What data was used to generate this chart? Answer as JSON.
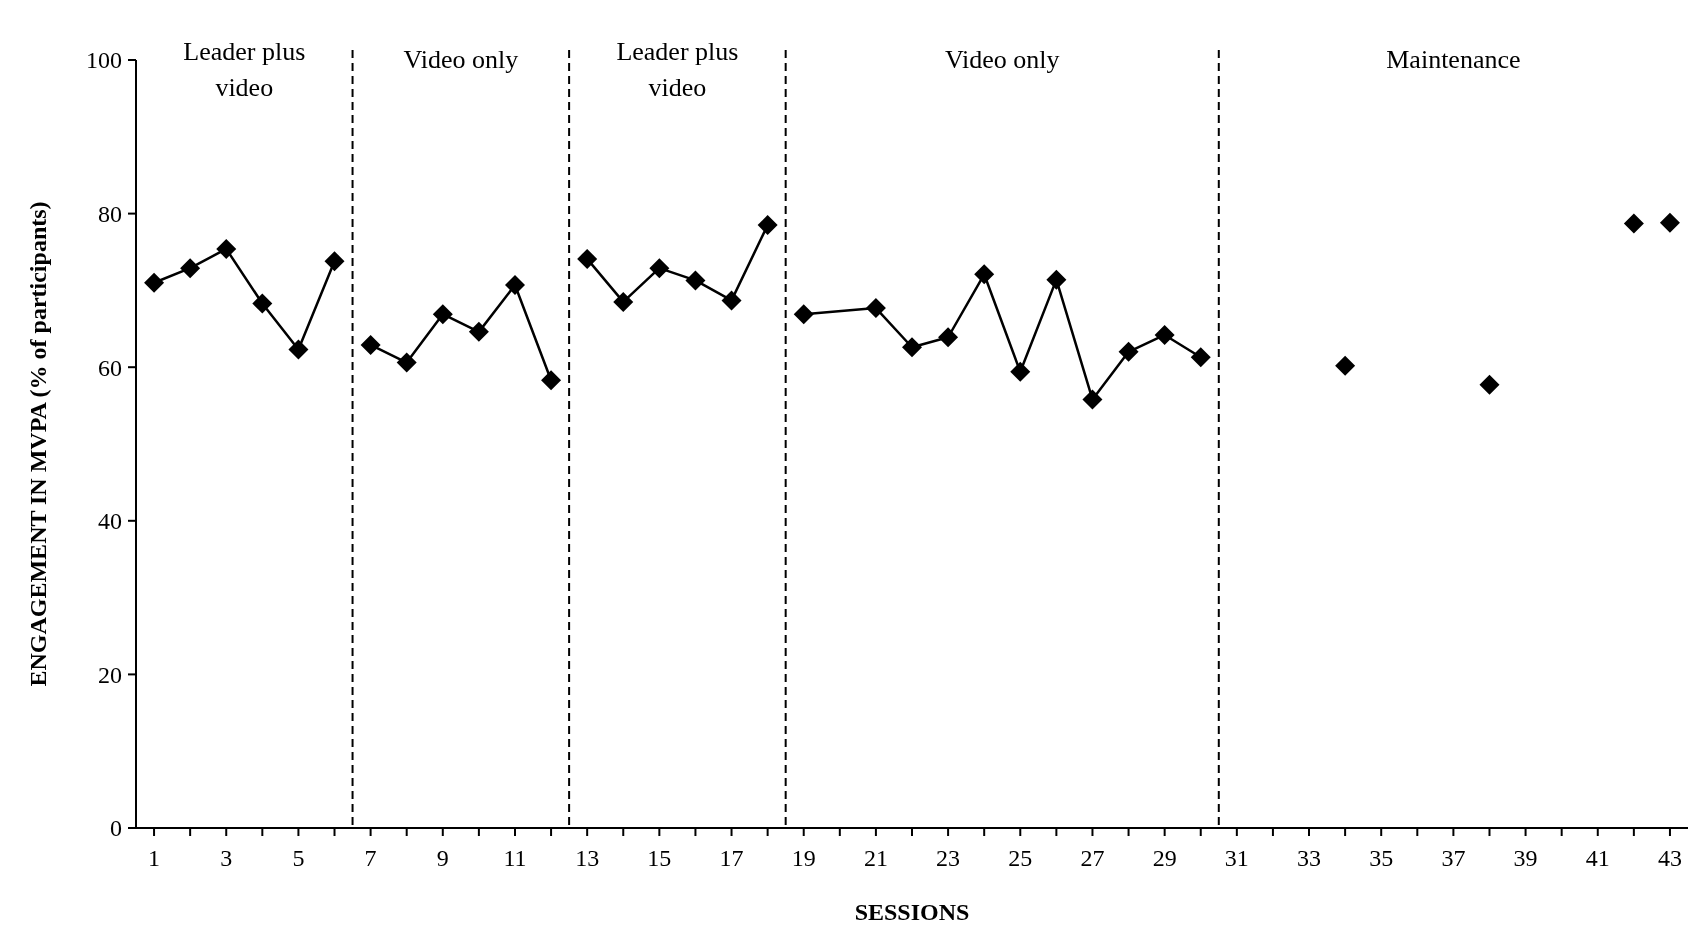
{
  "chart_data": {
    "type": "line",
    "xlabel": "SESSIONS",
    "ylabel": "ENGAGEMENT IN MVPA (% of participants)",
    "xlim": [
      0.5,
      43.5
    ],
    "xticks": [
      {
        "value": 1,
        "label": "1"
      },
      {
        "value": 2,
        "label": null
      },
      {
        "value": 3,
        "label": "3"
      },
      {
        "value": 4,
        "label": null
      },
      {
        "value": 5,
        "label": "5"
      },
      {
        "value": 6,
        "label": null
      },
      {
        "value": 7,
        "label": "7"
      },
      {
        "value": 8,
        "label": null
      },
      {
        "value": 9,
        "label": "9"
      },
      {
        "value": 10,
        "label": null
      },
      {
        "value": 11,
        "label": "11"
      },
      {
        "value": 12,
        "label": null
      },
      {
        "value": 13,
        "label": "13"
      },
      {
        "value": 14,
        "label": null
      },
      {
        "value": 15,
        "label": "15"
      },
      {
        "value": 16,
        "label": null
      },
      {
        "value": 17,
        "label": "17"
      },
      {
        "value": 18,
        "label": null
      },
      {
        "value": 19,
        "label": "19"
      },
      {
        "value": 20,
        "label": null
      },
      {
        "value": 21,
        "label": "21"
      },
      {
        "value": 22,
        "label": null
      },
      {
        "value": 23,
        "label": "23"
      },
      {
        "value": 24,
        "label": null
      },
      {
        "value": 25,
        "label": "25"
      },
      {
        "value": 26,
        "label": null
      },
      {
        "value": 27,
        "label": "27"
      },
      {
        "value": 28,
        "label": null
      },
      {
        "value": 29,
        "label": "29"
      },
      {
        "value": 30,
        "label": null
      },
      {
        "value": 31,
        "label": "31"
      },
      {
        "value": 32,
        "label": null
      },
      {
        "value": 33,
        "label": "33"
      },
      {
        "value": 34,
        "label": null
      },
      {
        "value": 35,
        "label": "35"
      },
      {
        "value": 36,
        "label": null
      },
      {
        "value": 37,
        "label": "37"
      },
      {
        "value": 38,
        "label": null
      },
      {
        "value": 39,
        "label": "39"
      },
      {
        "value": 40,
        "label": null
      },
      {
        "value": 41,
        "label": "41"
      },
      {
        "value": 42,
        "label": null
      },
      {
        "value": 43,
        "label": "43"
      }
    ],
    "ylim": [
      0,
      100
    ],
    "yticks": [
      0,
      20,
      40,
      60,
      80,
      100
    ],
    "grid": false,
    "marker": "diamond",
    "line_style": "solid",
    "series": [
      {
        "color": "#000000",
        "x": [
          1,
          2,
          3,
          4,
          5,
          6
        ],
        "values": [
          71.0,
          72.9,
          75.4,
          68.3,
          62.3,
          73.8
        ]
      },
      {
        "color": "#000000",
        "x": [
          7,
          8,
          9,
          10,
          11,
          12
        ],
        "values": [
          62.9,
          60.6,
          66.9,
          64.6,
          70.7,
          58.3
        ]
      },
      {
        "color": "#000000",
        "x": [
          13,
          14,
          15,
          16,
          17,
          18
        ],
        "values": [
          74.1,
          68.5,
          72.9,
          71.3,
          68.7,
          78.5
        ]
      },
      {
        "color": "#000000",
        "x": [
          19,
          21,
          22,
          23,
          24,
          25,
          26,
          27,
          28,
          29,
          30
        ],
        "values": [
          66.9,
          67.7,
          62.6,
          63.9,
          72.1,
          59.4,
          71.4,
          55.8,
          62.0,
          64.2,
          61.3
        ]
      },
      {
        "type": "scatter",
        "color": "#000000",
        "x": [
          34,
          38,
          42,
          43
        ],
        "values": [
          60.2,
          57.7,
          78.7,
          78.8
        ]
      }
    ],
    "ref_lines": [
      {
        "axis": "x",
        "value": 6.5,
        "line_style": "dashed"
      },
      {
        "axis": "x",
        "value": 12.5,
        "line_style": "dashed"
      },
      {
        "axis": "x",
        "value": 18.5,
        "line_style": "dashed"
      },
      {
        "axis": "x",
        "value": 30.5,
        "line_style": "dashed"
      }
    ],
    "annotations": [
      "Leader plus video",
      "Video only",
      "Leader plus video",
      "Video only",
      "Maintenance"
    ]
  }
}
